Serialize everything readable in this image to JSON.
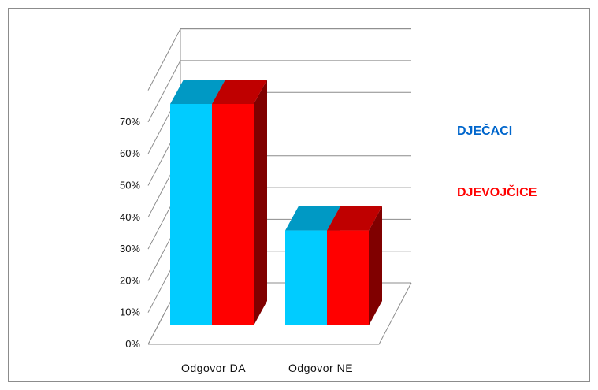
{
  "chart_data": {
    "type": "bar",
    "categories": [
      "Odgovor DA",
      "Odgovor NE"
    ],
    "series": [
      {
        "name": "DJEČACI",
        "values": [
          70,
          30
        ],
        "color": "#00ccff",
        "top_color": "#0099c4",
        "side_color": "#0077a0"
      },
      {
        "name": "DJEVOJČICE",
        "values": [
          70,
          30
        ],
        "color": "#ff0000",
        "top_color": "#bf0000",
        "side_color": "#800000"
      }
    ],
    "ylim": [
      0,
      70
    ],
    "yticks": [
      "0%",
      "10%",
      "20%",
      "30%",
      "40%",
      "50%",
      "60%",
      "70%"
    ],
    "grid": true,
    "legend": "right",
    "legend_colors": [
      "#0066cc",
      "#ff0000"
    ],
    "chart_style": "3d-clustered-column"
  }
}
